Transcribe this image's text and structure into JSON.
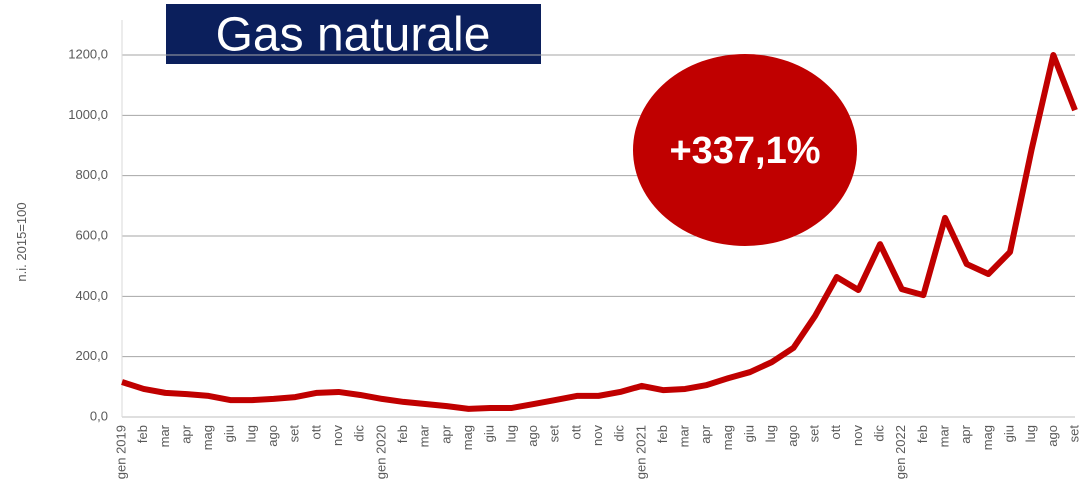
{
  "chart_data": {
    "type": "line",
    "title": "Gas naturale",
    "annotation": "+337,1%",
    "ylabel": "n.i. 2015=100",
    "categories": [
      "gen 2019",
      "feb",
      "mar",
      "apr",
      "mag",
      "giu",
      "lug",
      "ago",
      "set",
      "ott",
      "nov",
      "dic",
      "gen 2020",
      "feb",
      "mar",
      "apr",
      "mag",
      "giu",
      "lug",
      "ago",
      "set",
      "ott",
      "nov",
      "dic",
      "gen 2021",
      "feb",
      "mar",
      "apr",
      "mag",
      "giu",
      "lug",
      "ago",
      "set",
      "ott",
      "nov",
      "dic",
      "gen 2022",
      "feb",
      "mar",
      "apr",
      "mag",
      "giu",
      "lug",
      "ago",
      "set"
    ],
    "series": [
      {
        "name": "Gas naturale",
        "color": "#c00000",
        "values": [
          116,
          93,
          80,
          76,
          70,
          56,
          56,
          60,
          66,
          80,
          83,
          73,
          60,
          50,
          43,
          36,
          27,
          30,
          30,
          43,
          56,
          70,
          70,
          83,
          103,
          89,
          93,
          106,
          129,
          149,
          182,
          229,
          335,
          464,
          421,
          573,
          424,
          404,
          660,
          507,
          474,
          547,
          888,
          1200,
          1017
        ]
      }
    ],
    "ylim": [
      0,
      1200
    ],
    "yticks": [
      {
        "value": 0,
        "label": "0,0"
      },
      {
        "value": 200,
        "label": "200,0"
      },
      {
        "value": 400,
        "label": "400,0"
      },
      {
        "value": 600,
        "label": "600,0"
      },
      {
        "value": 800,
        "label": "800,0"
      },
      {
        "value": 1000,
        "label": "1000,0"
      },
      {
        "value": 1200,
        "label": "1200,0"
      }
    ],
    "grid": true
  }
}
